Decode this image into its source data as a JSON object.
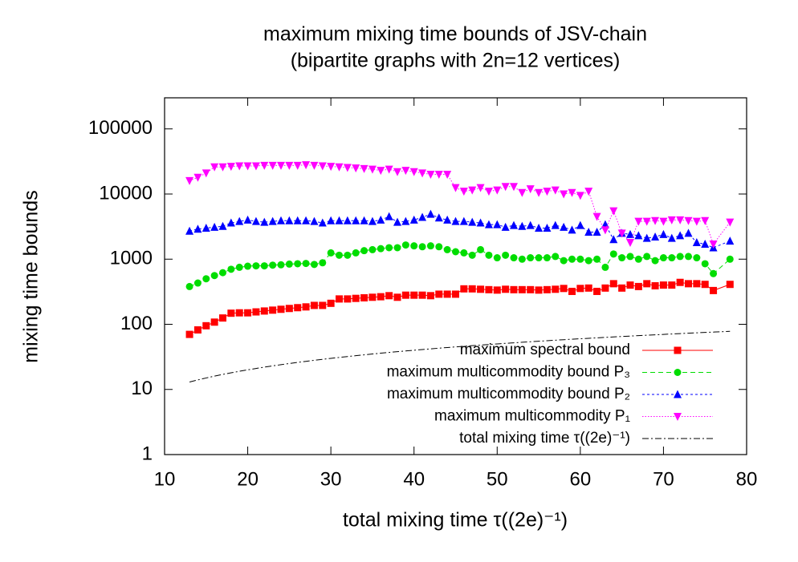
{
  "chart_data": {
    "type": "line",
    "title": "maximum mixing time bounds of JSV-chain",
    "subtitle": "(bipartite graphs with 2n=12 vertices)",
    "xlabel": "total mixing time τ((2e)⁻¹)",
    "ylabel": "mixing time bounds",
    "log_y": true,
    "legend": "bottom-right",
    "xlim": [
      10,
      80
    ],
    "xticks": [
      10,
      20,
      30,
      40,
      50,
      60,
      70,
      80
    ],
    "ylim": [
      1,
      300000
    ],
    "yticks": [
      1,
      10,
      100,
      1000,
      10000,
      100000
    ],
    "x": [
      13,
      14,
      15,
      16,
      17,
      18,
      19,
      20,
      21,
      22,
      23,
      24,
      25,
      26,
      27,
      28,
      29,
      30,
      31,
      32,
      33,
      34,
      35,
      36,
      37,
      38,
      39,
      40,
      41,
      42,
      43,
      44,
      45,
      46,
      47,
      48,
      49,
      50,
      51,
      52,
      53,
      54,
      55,
      56,
      57,
      58,
      59,
      60,
      61,
      62,
      63,
      64,
      65,
      66,
      67,
      68,
      69,
      70,
      71,
      72,
      73,
      74,
      75,
      76,
      78
    ],
    "series": [
      {
        "name": "maximum spectral bound",
        "color": "#ff0000",
        "marker": "square",
        "dash": "none",
        "values": [
          70,
          82,
          95,
          108,
          125,
          148,
          150,
          150,
          155,
          160,
          165,
          170,
          175,
          180,
          185,
          195,
          195,
          210,
          245,
          245,
          250,
          255,
          260,
          265,
          275,
          260,
          280,
          280,
          280,
          275,
          290,
          290,
          290,
          350,
          350,
          345,
          340,
          335,
          345,
          340,
          340,
          340,
          335,
          340,
          345,
          355,
          320,
          355,
          360,
          320,
          360,
          420,
          360,
          400,
          380,
          420,
          390,
          400,
          400,
          440,
          420,
          420,
          410,
          330,
          410
        ]
      },
      {
        "name": "maximum multicommodity bound P₃",
        "color": "#00dd00",
        "marker": "circle",
        "dash": "6,4",
        "values": [
          380,
          430,
          500,
          560,
          620,
          700,
          750,
          780,
          790,
          790,
          810,
          820,
          840,
          850,
          860,
          830,
          880,
          1250,
          1150,
          1150,
          1250,
          1350,
          1400,
          1450,
          1500,
          1500,
          1650,
          1600,
          1550,
          1600,
          1550,
          1400,
          1300,
          1250,
          1150,
          1400,
          1150,
          1050,
          1150,
          1050,
          1000,
          1050,
          1050,
          1050,
          1100,
          950,
          1000,
          1000,
          950,
          1000,
          750,
          1200,
          1050,
          1100,
          1000,
          1100,
          950,
          1050,
          1050,
          1100,
          1100,
          1050,
          850,
          600,
          1000
        ]
      },
      {
        "name": "maximum multicommodity bound P₂",
        "color": "#0000ff",
        "marker": "triangle-up",
        "dash": "3,3",
        "values": [
          2700,
          2900,
          3000,
          3100,
          3200,
          3600,
          3800,
          4000,
          3800,
          3700,
          3800,
          3900,
          3900,
          3900,
          3900,
          3800,
          3600,
          3900,
          3900,
          3900,
          3900,
          3900,
          3800,
          4000,
          4500,
          3700,
          3800,
          4000,
          4400,
          4900,
          4300,
          4000,
          3800,
          3800,
          3700,
          3600,
          3400,
          3400,
          3100,
          3300,
          3200,
          3300,
          3000,
          3000,
          3300,
          3100,
          2800,
          3300,
          2600,
          2600,
          3400,
          2000,
          2500,
          2400,
          2300,
          2100,
          2200,
          2400,
          2100,
          2300,
          2500,
          1800,
          1700,
          1500,
          1900
        ]
      },
      {
        "name": "maximum multicommodity P₁",
        "color": "#ff00ff",
        "marker": "triangle-down",
        "dash": "1.5,2",
        "values": [
          16000,
          18000,
          21000,
          26000,
          26000,
          26500,
          27000,
          27000,
          27000,
          27500,
          27500,
          27500,
          27500,
          27500,
          28000,
          27500,
          27000,
          26500,
          26000,
          25500,
          25000,
          24500,
          24000,
          23000,
          24000,
          22000,
          23000,
          22000,
          21000,
          20000,
          20000,
          20000,
          12500,
          11000,
          11500,
          12500,
          11000,
          11500,
          13000,
          13000,
          10500,
          12000,
          10500,
          11000,
          11500,
          10000,
          10500,
          9500,
          11000,
          4500,
          2800,
          5500,
          2500,
          1800,
          3800,
          3800,
          3900,
          3800,
          4000,
          4000,
          3900,
          3800,
          3900,
          1700,
          3700
        ]
      },
      {
        "name": "total mixing time τ((2e)⁻¹)",
        "color": "#000000",
        "marker": "none",
        "dash": "8,3,2,3",
        "values": [
          13,
          14,
          15,
          16,
          17,
          18,
          19,
          20,
          21,
          22,
          23,
          24,
          25,
          26,
          27,
          28,
          29,
          30,
          31,
          32,
          33,
          34,
          35,
          36,
          37,
          38,
          39,
          40,
          41,
          42,
          43,
          44,
          45,
          46,
          47,
          48,
          49,
          50,
          51,
          52,
          53,
          54,
          55,
          56,
          57,
          58,
          59,
          60,
          61,
          62,
          63,
          64,
          65,
          66,
          67,
          68,
          69,
          70,
          71,
          72,
          73,
          74,
          75,
          76,
          78
        ]
      }
    ]
  }
}
